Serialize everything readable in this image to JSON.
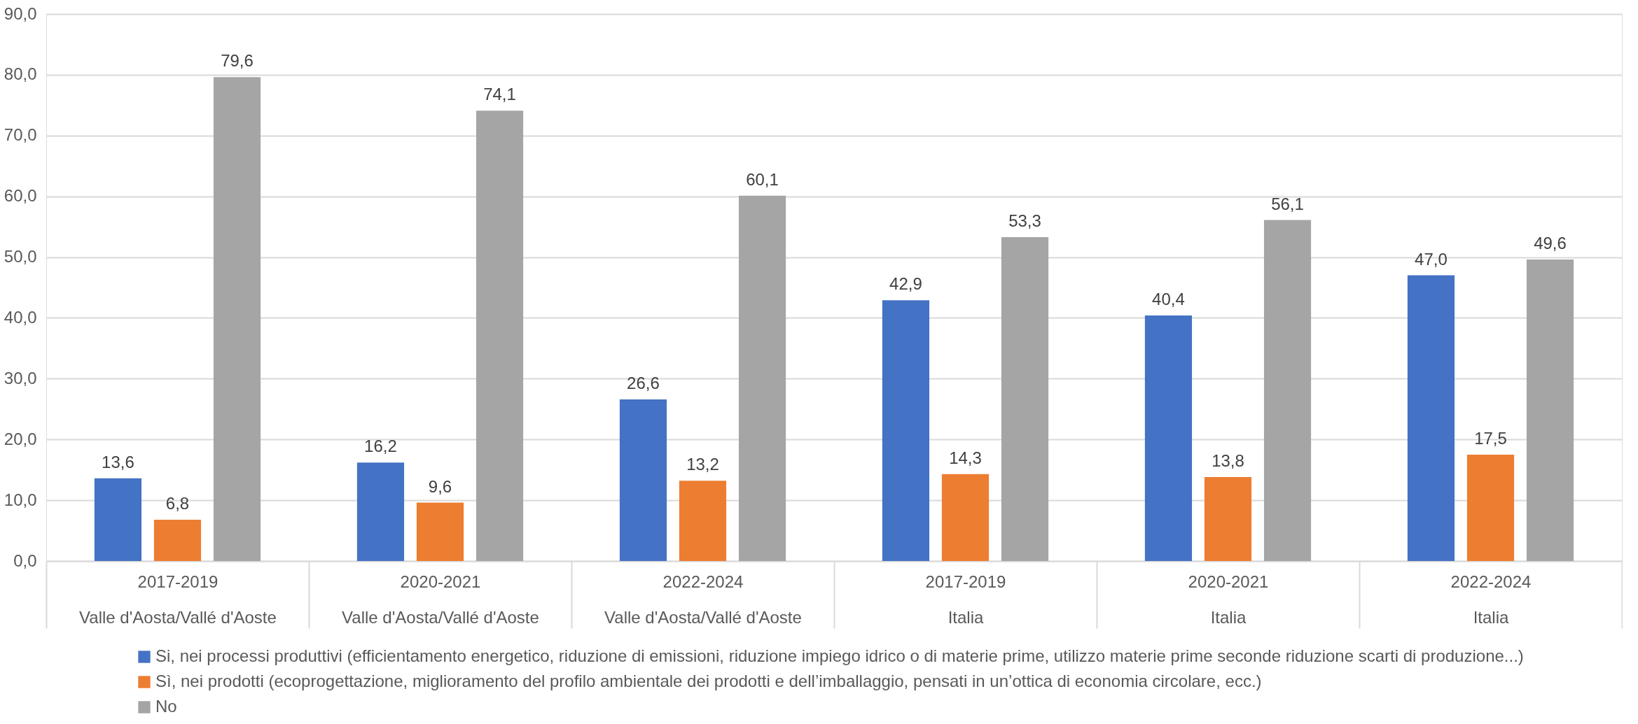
{
  "chart_data": {
    "type": "bar",
    "categories": [
      "2017-2019\nValle d'Aosta/Vallé d'Aoste",
      "2020-2021\nValle d'Aosta/Vallé d'Aoste",
      "2022-2024\nValle d'Aosta/Vallé d'Aoste",
      "2017-2019\nItalia",
      "2020-2021\nItalia",
      "2022-2024\nItalia"
    ],
    "series": [
      {
        "name": "Si, nei processi produttivi (efficientamento energetico, riduzione di emissioni, riduzione impiego idrico o di materie prime, utilizzo materie prime seconde riduzione scarti di produzione...)",
        "color": "#4472c4",
        "values": [
          13.6,
          16.2,
          26.6,
          42.9,
          40.4,
          47.0
        ],
        "value_labels": [
          "13,6",
          "16,2",
          "26,6",
          "42,9",
          "40,4",
          "47,0"
        ]
      },
      {
        "name": "Sì, nei prodotti (ecoprogettazione, miglioramento del profilo ambientale dei prodotti e dell’imballaggio, pensati in un’ottica di economia circolare, ecc.)",
        "color": "#ed7d31",
        "values": [
          6.8,
          9.6,
          13.2,
          14.3,
          13.8,
          17.5
        ],
        "value_labels": [
          "6,8",
          "9,6",
          "13,2",
          "14,3",
          "13,8",
          "17,5"
        ]
      },
      {
        "name": "No",
        "color": "#a5a5a5",
        "values": [
          79.6,
          74.1,
          60.1,
          53.3,
          56.1,
          49.6
        ],
        "value_labels": [
          "79,6",
          "74,1",
          "60,1",
          "53,3",
          "56,1",
          "49,6"
        ]
      }
    ],
    "ylim": [
      0,
      90
    ],
    "yticks": [
      {
        "value": 0,
        "label": "0,0"
      },
      {
        "value": 10,
        "label": "10,0"
      },
      {
        "value": 20,
        "label": "20,0"
      },
      {
        "value": 30,
        "label": "30,0"
      },
      {
        "value": 40,
        "label": "40,0"
      },
      {
        "value": 50,
        "label": "50,0"
      },
      {
        "value": 60,
        "label": "60,0"
      },
      {
        "value": 70,
        "label": "70,0"
      },
      {
        "value": 80,
        "label": "80,0"
      },
      {
        "value": 90,
        "label": "90,0"
      }
    ],
    "grid": "y",
    "legend": "bottom"
  }
}
